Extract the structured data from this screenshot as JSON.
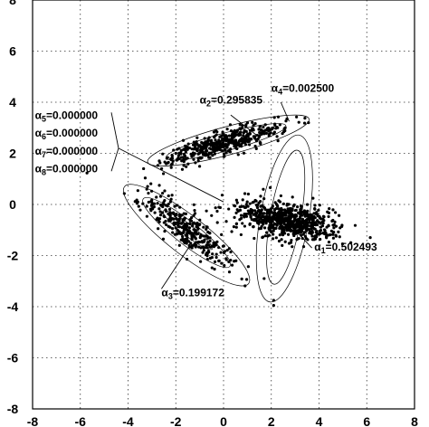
{
  "chart_data": {
    "type": "scatter",
    "xlim": [
      -8,
      8
    ],
    "ylim": [
      -8,
      8
    ],
    "x_ticks": [
      "-8",
      "-6",
      "-4",
      "-2",
      "0",
      "2",
      "4",
      "6",
      "8"
    ],
    "y_ticks": [
      "-8",
      "-6",
      "-4",
      "-2",
      "0",
      "2",
      "4",
      "6",
      "8"
    ],
    "grid": true,
    "clusters": [
      {
        "name": "α1",
        "center": [
          2.6,
          -0.6
        ],
        "spread": [
          0.35,
          1.1
        ],
        "angle_deg": 80,
        "count": 700
      },
      {
        "name": "α2",
        "center": [
          0.0,
          2.4
        ],
        "spread": [
          1.25,
          0.22
        ],
        "angle_deg": 15,
        "count": 450
      },
      {
        "name": "α3",
        "center": [
          -1.5,
          -1.0
        ],
        "spread": [
          1.2,
          0.3
        ],
        "angle_deg": -38,
        "count": 330
      }
    ],
    "stray_points": [
      [
        2.1,
        -3.75
      ],
      [
        2.1,
        -3.95
      ],
      [
        -3.35,
        1.4
      ],
      [
        1.7,
        -2.9
      ]
    ],
    "ellipses": [
      {
        "cx": 2.55,
        "cy": -0.55,
        "rx": 3.55,
        "ry": 0.95,
        "angle_deg": 80
      },
      {
        "cx": 2.6,
        "cy": -0.5,
        "rx": 2.85,
        "ry": 0.6,
        "angle_deg": 80
      },
      {
        "cx": 0.2,
        "cy": 2.5,
        "rx": 3.5,
        "ry": 0.55,
        "angle_deg": 15
      },
      {
        "cx": 0.1,
        "cy": 2.45,
        "rx": 2.6,
        "ry": 0.35,
        "angle_deg": 15
      },
      {
        "cx": -1.55,
        "cy": -1.2,
        "rx": 3.3,
        "ry": 0.75,
        "angle_deg": -38
      },
      {
        "cx": -1.55,
        "cy": -1.1,
        "rx": 2.3,
        "ry": 0.45,
        "angle_deg": -38
      },
      {
        "cx": -1.5,
        "cy": -1.0,
        "rx": 1.3,
        "ry": 0.22,
        "angle_deg": -38
      }
    ],
    "annotations": [
      {
        "base": "α",
        "sub": "1",
        "value": "0.502493",
        "at": [
          3.8,
          -1.8
        ]
      },
      {
        "base": "α",
        "sub": "2",
        "value": "0.295835",
        "at": [
          -1.0,
          3.95
        ]
      },
      {
        "base": "α",
        "sub": "3",
        "value": "0.199172",
        "at": [
          -2.6,
          -3.6
        ]
      },
      {
        "base": "α",
        "sub": "4",
        "value": "0.002500",
        "at": [
          2.0,
          4.4
        ]
      },
      {
        "base": "α",
        "sub": "5",
        "value": "0.000000",
        "at": [
          -7.9,
          3.35
        ]
      },
      {
        "base": "α",
        "sub": "6",
        "value": "0.000000",
        "at": [
          -7.9,
          2.65
        ]
      },
      {
        "base": "α",
        "sub": "7",
        "value": "0.000000",
        "at": [
          -7.9,
          1.95
        ]
      },
      {
        "base": "α",
        "sub": "8",
        "value": "0.000000",
        "at": [
          -7.9,
          1.25
        ]
      }
    ],
    "leaders": [
      {
        "from": [
          3.7,
          -1.7
        ],
        "to": [
          3.1,
          -1.1
        ]
      },
      {
        "from": [
          0.3,
          3.5
        ],
        "to": [
          1.4,
          2.7
        ]
      },
      {
        "from": [
          -2.6,
          -3.3
        ],
        "to": [
          -1.4,
          -1.6
        ]
      },
      {
        "from": [
          2.4,
          4.0
        ],
        "to": [
          2.75,
          3.25
        ]
      },
      {
        "from": [
          -4.7,
          3.6
        ],
        "to": [
          -4.4,
          2.2
        ]
      },
      {
        "from": [
          -4.4,
          2.2
        ],
        "to": [
          -4.7,
          1.3
        ]
      },
      {
        "from": [
          -4.4,
          2.2
        ],
        "to": [
          0.0,
          0.1
        ]
      }
    ]
  }
}
